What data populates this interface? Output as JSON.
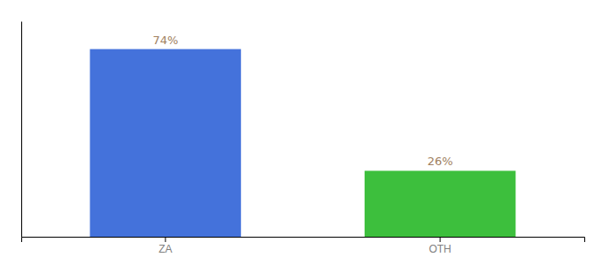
{
  "chart_data": {
    "type": "bar",
    "categories": [
      "ZA",
      "OTH"
    ],
    "values": [
      74,
      26
    ],
    "colors": [
      "#4472db",
      "#3dbf3d"
    ],
    "ylim": [
      0,
      85
    ],
    "data_labels": true,
    "value_labels": [
      "74%",
      "26%"
    ],
    "tick_labels": "x",
    "grid": false
  }
}
